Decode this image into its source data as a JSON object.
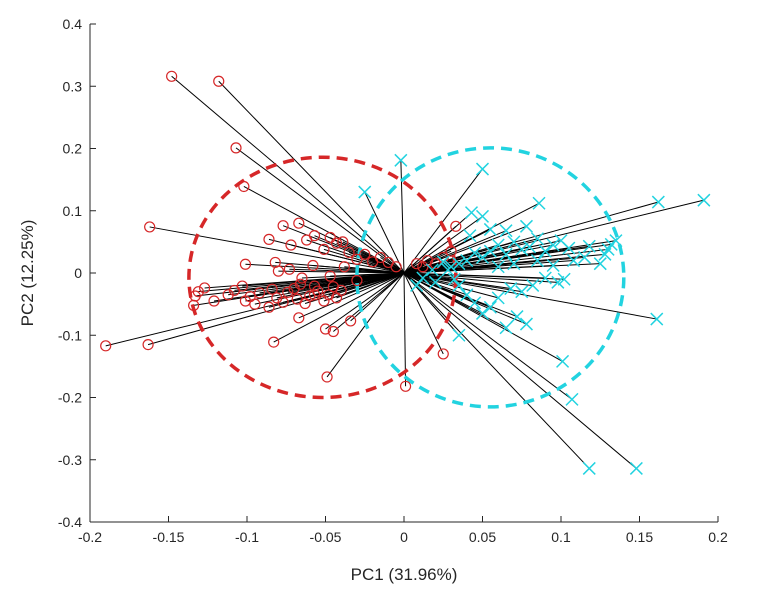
{
  "chart_data": {
    "type": "scatter",
    "title": "",
    "xlabel": "PC1 (31.96%)",
    "ylabel": "PC2 (12.25%)",
    "xlim": [
      -0.2,
      0.2
    ],
    "ylim": [
      -0.4,
      0.4
    ],
    "xticks": [
      "-0.2",
      "-0.15",
      "-0.1",
      "-0.05",
      "0",
      "0.05",
      "0.1",
      "0.15",
      "0.2"
    ],
    "yticks": [
      "-0.4",
      "-0.3",
      "-0.2",
      "-0.1",
      "0",
      "0.1",
      "0.2",
      "0.3",
      "0.4"
    ],
    "grid": false,
    "origin": [
      0,
      0
    ],
    "series": [
      {
        "marker": "circle",
        "color": "#d62728",
        "points": [
          [
            -0.148,
            0.316
          ],
          [
            -0.118,
            0.308
          ],
          [
            -0.107,
            0.201
          ],
          [
            -0.102,
            0.139
          ],
          [
            -0.162,
            0.074
          ],
          [
            -0.19,
            -0.117
          ],
          [
            -0.163,
            -0.115
          ],
          [
            -0.134,
            -0.052
          ],
          [
            -0.133,
            -0.037
          ],
          [
            -0.131,
            -0.03
          ],
          [
            -0.127,
            -0.024
          ],
          [
            -0.112,
            -0.035
          ],
          [
            -0.101,
            -0.045
          ],
          [
            -0.121,
            -0.045
          ],
          [
            -0.108,
            -0.028
          ],
          [
            -0.103,
            -0.021
          ],
          [
            -0.098,
            -0.038
          ],
          [
            -0.095,
            -0.05
          ],
          [
            -0.092,
            -0.032
          ],
          [
            -0.086,
            -0.055
          ],
          [
            -0.084,
            -0.026
          ],
          [
            -0.081,
            -0.04
          ],
          [
            -0.077,
            -0.047
          ],
          [
            -0.074,
            -0.031
          ],
          [
            -0.07,
            -0.025
          ],
          [
            -0.068,
            -0.042
          ],
          [
            -0.066,
            -0.018
          ],
          [
            -0.063,
            -0.049
          ],
          [
            -0.06,
            -0.037
          ],
          [
            -0.057,
            -0.021
          ],
          [
            -0.055,
            -0.029
          ],
          [
            -0.051,
            -0.045
          ],
          [
            -0.048,
            -0.035
          ],
          [
            -0.045,
            -0.022
          ],
          [
            -0.043,
            -0.04
          ],
          [
            -0.04,
            -0.028
          ],
          [
            -0.101,
            0.014
          ],
          [
            -0.086,
            0.054
          ],
          [
            -0.082,
            0.017
          ],
          [
            -0.077,
            0.076
          ],
          [
            -0.072,
            0.045
          ],
          [
            -0.067,
            0.08
          ],
          [
            -0.062,
            0.053
          ],
          [
            -0.057,
            0.06
          ],
          [
            -0.051,
            0.038
          ],
          [
            -0.047,
            0.057
          ],
          [
            -0.043,
            0.048
          ],
          [
            -0.039,
            0.05
          ],
          [
            -0.035,
            0.033
          ],
          [
            -0.03,
            0.022
          ],
          [
            -0.025,
            0.03
          ],
          [
            -0.02,
            0.018
          ],
          [
            -0.015,
            0.025
          ],
          [
            -0.01,
            0.017
          ],
          [
            -0.005,
            0.01
          ],
          [
            -0.083,
            -0.111
          ],
          [
            -0.067,
            -0.072
          ],
          [
            -0.057,
            -0.035
          ],
          [
            -0.05,
            -0.09
          ],
          [
            -0.045,
            -0.094
          ],
          [
            -0.034,
            -0.077
          ],
          [
            -0.049,
            -0.167
          ],
          [
            0.001,
            -0.182
          ],
          [
            0.025,
            -0.13
          ],
          [
            0.033,
            0.075
          ],
          [
            0.03,
            0.035
          ],
          [
            0.025,
            0.025
          ],
          [
            0.02,
            0.015
          ],
          [
            0.015,
            0.02
          ],
          [
            0.012,
            0.01
          ],
          [
            0.008,
            0.015
          ],
          [
            -0.08,
            0.003
          ],
          [
            -0.073,
            0.006
          ],
          [
            -0.065,
            -0.008
          ],
          [
            -0.058,
            0.012
          ],
          [
            -0.047,
            -0.005
          ],
          [
            -0.038,
            0.01
          ],
          [
            -0.03,
            -0.012
          ]
        ]
      },
      {
        "marker": "x",
        "color": "#22d3e0",
        "points": [
          [
            -0.002,
            0.181
          ],
          [
            0.05,
            0.167
          ],
          [
            -0.025,
            0.13
          ],
          [
            0.086,
            0.112
          ],
          [
            0.191,
            0.117
          ],
          [
            0.162,
            0.114
          ],
          [
            0.043,
            0.097
          ],
          [
            0.05,
            0.091
          ],
          [
            0.135,
            0.052
          ],
          [
            0.132,
            0.046
          ],
          [
            0.13,
            0.038
          ],
          [
            0.128,
            0.03
          ],
          [
            0.118,
            0.043
          ],
          [
            0.105,
            0.04
          ],
          [
            0.1,
            0.052
          ],
          [
            0.095,
            0.045
          ],
          [
            0.09,
            0.035
          ],
          [
            0.085,
            0.055
          ],
          [
            0.08,
            0.042
          ],
          [
            0.075,
            0.038
          ],
          [
            0.07,
            0.05
          ],
          [
            0.065,
            0.03
          ],
          [
            0.06,
            0.045
          ],
          [
            0.055,
            0.035
          ],
          [
            0.05,
            0.025
          ],
          [
            0.045,
            0.032
          ],
          [
            0.04,
            0.02
          ],
          [
            0.035,
            0.015
          ],
          [
            0.03,
            0.01
          ],
          [
            0.025,
            0.018
          ],
          [
            0.102,
            -0.01
          ],
          [
            0.098,
            -0.015
          ],
          [
            0.09,
            -0.008
          ],
          [
            0.082,
            -0.02
          ],
          [
            0.075,
            -0.03
          ],
          [
            0.068,
            -0.025
          ],
          [
            0.06,
            -0.04
          ],
          [
            0.055,
            -0.055
          ],
          [
            0.05,
            -0.065
          ],
          [
            0.045,
            -0.048
          ],
          [
            0.04,
            -0.035
          ],
          [
            0.035,
            -0.02
          ],
          [
            0.078,
            -0.082
          ],
          [
            0.072,
            -0.07
          ],
          [
            0.065,
            -0.088
          ],
          [
            0.035,
            -0.1
          ],
          [
            0.161,
            -0.074
          ],
          [
            0.101,
            -0.142
          ],
          [
            0.107,
            -0.203
          ],
          [
            0.118,
            -0.314
          ],
          [
            0.148,
            -0.314
          ],
          [
            0.008,
            -0.02
          ],
          [
            0.012,
            -0.008
          ],
          [
            0.018,
            0.005
          ],
          [
            0.02,
            -0.015
          ],
          [
            0.028,
            0.005
          ],
          [
            0.032,
            -0.01
          ],
          [
            0.06,
            0.01
          ],
          [
            0.07,
            0.015
          ],
          [
            0.085,
            0.02
          ],
          [
            0.095,
            0.012
          ],
          [
            0.108,
            0.02
          ],
          [
            0.115,
            0.025
          ],
          [
            0.125,
            0.015
          ],
          [
            0.042,
            0.06
          ],
          [
            0.055,
            0.07
          ],
          [
            0.065,
            0.068
          ],
          [
            0.078,
            0.075
          ]
        ]
      }
    ],
    "ellipses": [
      {
        "color": "#d62728",
        "style": "dashed",
        "center": [
          -0.052,
          -0.007
        ],
        "radius": [
          0.085,
          0.193
        ]
      },
      {
        "color": "#22d3e0",
        "style": "dashed",
        "center": [
          0.055,
          -0.007
        ],
        "radius": [
          0.085,
          0.208
        ]
      }
    ]
  }
}
